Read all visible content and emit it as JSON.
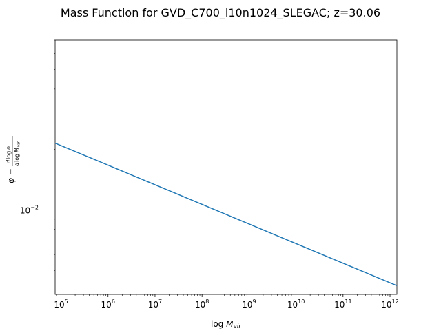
{
  "chart_data": {
    "type": "line",
    "title": "Mass Function for GVD_C700_l10n1024_SLEGAC; z=30.06",
    "xlabel": "log M_vir",
    "ylabel": "phi = dlog n / dlog M_vir",
    "x_scale": "log",
    "y_scale": "log",
    "xlim": [
      75000,
      1400000000000.0
    ],
    "ylim": [
      0.0038,
      0.07
    ],
    "x_ticks": [
      100000.0,
      1000000.0,
      10000000.0,
      100000000.0,
      1000000000.0,
      10000000000.0,
      100000000000.0,
      1000000000000.0
    ],
    "x_tick_exponents": [
      "5",
      "6",
      "7",
      "8",
      "9",
      "10",
      "11",
      "12"
    ],
    "y_ticks": [
      0.01
    ],
    "y_tick_exponents": [
      "−2"
    ],
    "tick_base": "10",
    "grid": false,
    "legend": false,
    "series": [
      {
        "color": "#1f77b4",
        "x": [
          75000,
          1400000000000.0
        ],
        "y": [
          0.0215,
          0.0042
        ]
      }
    ]
  }
}
